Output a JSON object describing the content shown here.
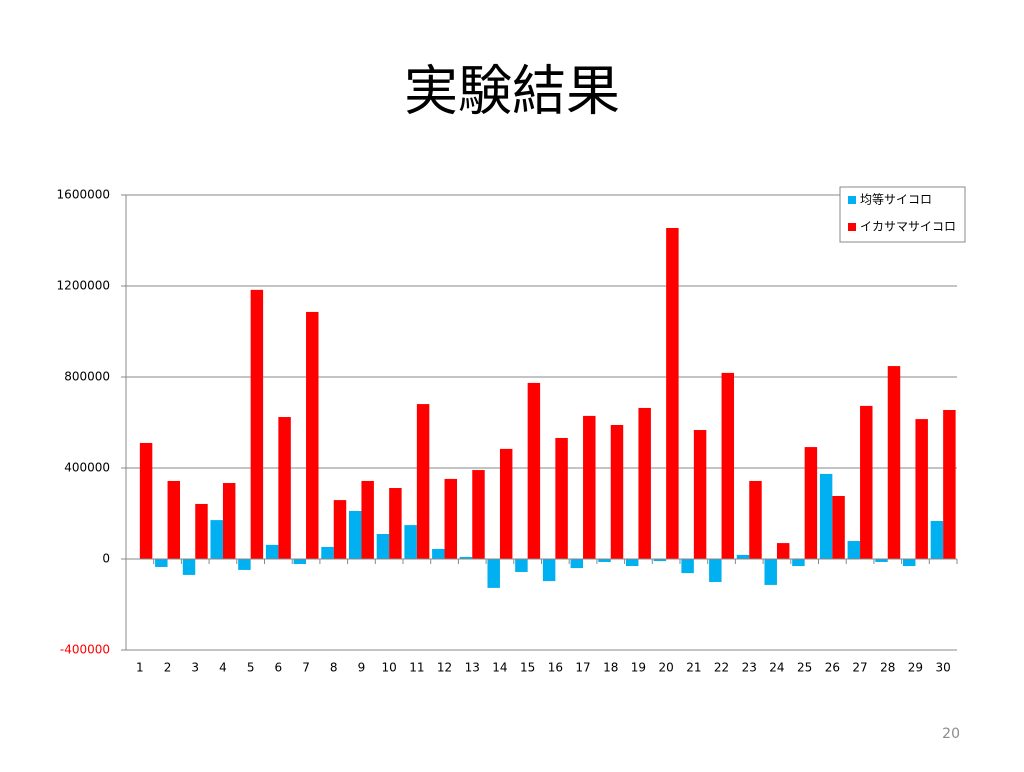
{
  "chart_data": {
    "type": "bar",
    "title": "実験結果",
    "categories": [
      "1",
      "2",
      "3",
      "4",
      "5",
      "6",
      "7",
      "8",
      "9",
      "10",
      "11",
      "12",
      "13",
      "14",
      "15",
      "16",
      "17",
      "18",
      "19",
      "20",
      "21",
      "22",
      "23",
      "24",
      "25",
      "26",
      "27",
      "28",
      "29",
      "30"
    ],
    "series": [
      {
        "name": "均等サイコロ",
        "color": "#00b0f0",
        "values": [
          2000,
          -35000,
          -70000,
          171000,
          -48000,
          62000,
          -22000,
          53000,
          211000,
          110000,
          149000,
          44000,
          9000,
          -127000,
          -57000,
          -97000,
          -40000,
          -13000,
          -31000,
          -9000,
          -62000,
          -101000,
          18000,
          -114000,
          -31000,
          374000,
          79000,
          -13000,
          -31000,
          167000
        ]
      },
      {
        "name": "イカサマサイコロ",
        "color": "#ff0000",
        "values": [
          510000,
          343000,
          242000,
          334000,
          1183000,
          624000,
          1086000,
          259000,
          343000,
          312000,
          681000,
          352000,
          391000,
          484000,
          774000,
          532000,
          629000,
          589000,
          664000,
          1455000,
          567000,
          818000,
          343000,
          70000,
          492000,
          277000,
          673000,
          848000,
          615000,
          655000
        ]
      }
    ],
    "ylim": [
      -400000,
      1600000
    ],
    "yticks": [
      -400000,
      0,
      400000,
      800000,
      1200000,
      1600000
    ],
    "grid": true,
    "legend": "top-right",
    "negative_tick_color": "#ff0000"
  },
  "page_number": "20"
}
